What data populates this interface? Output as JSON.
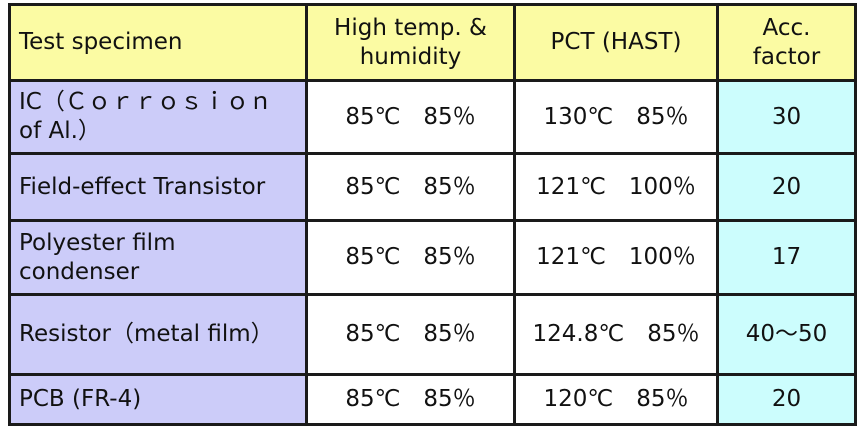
{
  "headers": [
    "Test specimen",
    "High temp. & humidity",
    "PCT (HAST)",
    "Acc. factor"
  ],
  "rows": [
    {
      "specimen": "IC（Ｃｏｒｒｏｓｉｏｎ of Al.）",
      "high_temp_humidity": "85℃　85％",
      "pct_hast": "130℃　85％",
      "acc_factor": "30"
    },
    {
      "specimen": "Field-effect Transistor",
      "high_temp_humidity": "85℃　85％",
      "pct_hast": "121℃　100％",
      "acc_factor": "20"
    },
    {
      "specimen": "Polyester film condenser",
      "high_temp_humidity": "85℃　85％",
      "pct_hast": "121℃　100％",
      "acc_factor": "17"
    },
    {
      "specimen": "Resistor（metal film）",
      "high_temp_humidity": "85℃　85％",
      "pct_hast": "124.8℃　85％",
      "acc_factor": "40～50"
    },
    {
      "specimen": "PCB (FR-4)",
      "high_temp_humidity": "85℃　85％",
      "pct_hast": "120℃　85％",
      "acc_factor": "20"
    }
  ],
  "colors": {
    "header": "#fbfba3",
    "specimen_column": "#ccccf9",
    "acc_factor_column": "#ccfdfd",
    "border": "#1a1a1a"
  }
}
